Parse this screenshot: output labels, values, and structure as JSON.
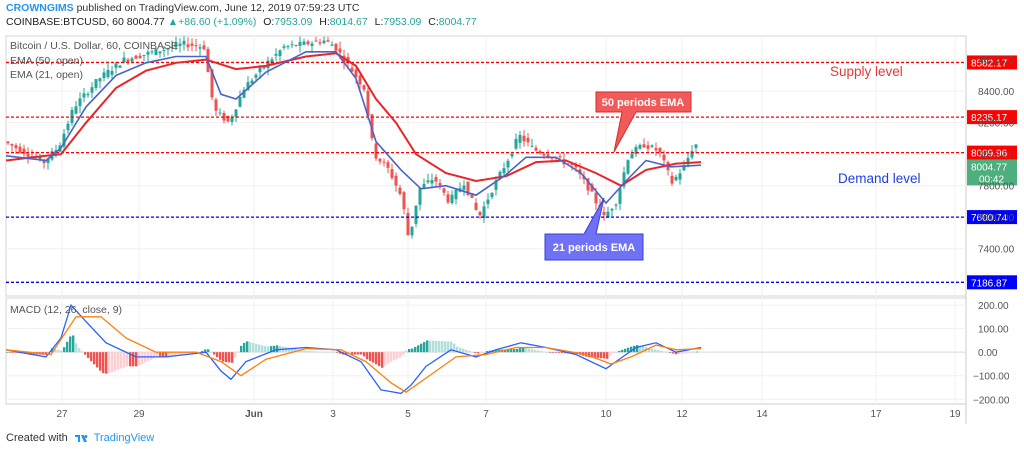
{
  "header": {
    "author": "CROWNGIMS",
    "published": "published on TradingView.com, June 12, 2019 07:59:23 UTC",
    "symbol": "COINBASE:BTCUSD, 60",
    "last": "8004.77",
    "change": "+86.60 (+1.09%)",
    "o_label": "O:",
    "o": "7953.09",
    "h_label": "H:",
    "h": "8014.67",
    "l_label": "L:",
    "l": "7953.09",
    "c_label": "C:",
    "c": "8004.77"
  },
  "legend": {
    "title": "Bitcoin / U.S. Dollar, 60, COINBASE",
    "ema50": "EMA (50, open)",
    "ema21": "EMA (21, open)",
    "macd": "MACD (12, 26, close, 9)"
  },
  "annotations": {
    "supply": "Supply level",
    "demand": "Demand level",
    "ema50_callout": "50 periods EMA",
    "ema21_callout": "21 periods EMA"
  },
  "footer": {
    "created": "Created with",
    "brand": "TradingView"
  },
  "colors": {
    "ema50": "#e8262a",
    "ema21": "#4a63c8",
    "up": "#26a69a",
    "down": "#ef5350",
    "resistance": "#ff0000",
    "support": "#0000ff",
    "macd": "#2962ff",
    "signal": "#ff7f0e"
  },
  "chart_data": [
    {
      "type": "candlestick",
      "title": "Bitcoin / U.S. Dollar, 60, COINBASE",
      "ylim": [
        7100,
        8750
      ],
      "y_ticks": [
        7400,
        7600,
        7800,
        8000,
        8200,
        8400,
        8600
      ],
      "x_ticks": [
        "27",
        "29",
        "Jun",
        "3",
        "5",
        "7",
        "10",
        "12",
        "14",
        "17",
        "19"
      ],
      "horizontal_levels": [
        {
          "value": 8582.17,
          "label": "8582.17",
          "color": "#ff0000"
        },
        {
          "value": 8235.17,
          "label": "8235.17",
          "color": "#ff0000"
        },
        {
          "value": 8009.96,
          "label": "8009.96",
          "color": "#ff0000"
        },
        {
          "value": 7600.74,
          "label": "7600.74",
          "color": "#0000ff"
        },
        {
          "value": 7186.87,
          "label": "7186.87",
          "color": "#0000ff"
        }
      ],
      "last_price": {
        "value": 8004.77,
        "label": "8004.77",
        "countdown": "00:42"
      },
      "price_path": [
        [
          0,
          8080
        ],
        [
          40,
          7950
        ],
        [
          55,
          8050
        ],
        [
          70,
          8300
        ],
        [
          95,
          8480
        ],
        [
          120,
          8600
        ],
        [
          150,
          8650
        ],
        [
          180,
          8700
        ],
        [
          200,
          8680
        ],
        [
          210,
          8280
        ],
        [
          225,
          8200
        ],
        [
          240,
          8420
        ],
        [
          260,
          8560
        ],
        [
          280,
          8680
        ],
        [
          300,
          8700
        ],
        [
          320,
          8720
        ],
        [
          330,
          8690
        ],
        [
          345,
          8560
        ],
        [
          360,
          8420
        ],
        [
          370,
          8000
        ],
        [
          385,
          7900
        ],
        [
          398,
          7720
        ],
        [
          405,
          7450
        ],
        [
          415,
          7780
        ],
        [
          430,
          7850
        ],
        [
          445,
          7700
        ],
        [
          460,
          7820
        ],
        [
          475,
          7600
        ],
        [
          490,
          7800
        ],
        [
          505,
          7980
        ],
        [
          515,
          8120
        ],
        [
          530,
          8030
        ],
        [
          550,
          7980
        ],
        [
          570,
          7920
        ],
        [
          585,
          7780
        ],
        [
          600,
          7600
        ],
        [
          612,
          7700
        ],
        [
          625,
          8000
        ],
        [
          640,
          8060
        ],
        [
          655,
          8020
        ],
        [
          668,
          7820
        ],
        [
          680,
          7920
        ],
        [
          690,
          8060
        ]
      ],
      "series": [
        {
          "name": "EMA (50, open)",
          "points": [
            [
              0,
              7960
            ],
            [
              40,
              7990
            ],
            [
              55,
              8000
            ],
            [
              80,
              8200
            ],
            [
              110,
              8420
            ],
            [
              140,
              8530
            ],
            [
              170,
              8580
            ],
            [
              200,
              8600
            ],
            [
              230,
              8540
            ],
            [
              260,
              8560
            ],
            [
              300,
              8620
            ],
            [
              330,
              8640
            ],
            [
              350,
              8560
            ],
            [
              370,
              8350
            ],
            [
              390,
              8200
            ],
            [
              410,
              8000
            ],
            [
              440,
              7880
            ],
            [
              470,
              7830
            ],
            [
              500,
              7860
            ],
            [
              530,
              7950
            ],
            [
              560,
              7960
            ],
            [
              590,
              7880
            ],
            [
              615,
              7800
            ],
            [
              640,
              7900
            ],
            [
              670,
              7940
            ],
            [
              695,
              7950
            ]
          ]
        },
        {
          "name": "EMA (21, open)",
          "points": [
            [
              0,
              7990
            ],
            [
              40,
              7960
            ],
            [
              55,
              8040
            ],
            [
              80,
              8300
            ],
            [
              110,
              8500
            ],
            [
              140,
              8580
            ],
            [
              170,
              8620
            ],
            [
              200,
              8620
            ],
            [
              215,
              8380
            ],
            [
              230,
              8350
            ],
            [
              260,
              8520
            ],
            [
              300,
              8650
            ],
            [
              330,
              8650
            ],
            [
              350,
              8480
            ],
            [
              370,
              8080
            ],
            [
              395,
              7900
            ],
            [
              415,
              7780
            ],
            [
              440,
              7800
            ],
            [
              470,
              7740
            ],
            [
              500,
              7870
            ],
            [
              520,
              7980
            ],
            [
              550,
              7980
            ],
            [
              575,
              7880
            ],
            [
              600,
              7690
            ],
            [
              620,
              7830
            ],
            [
              640,
              7960
            ],
            [
              665,
              7920
            ],
            [
              695,
              7930
            ]
          ]
        }
      ]
    },
    {
      "type": "macd",
      "title": "MACD (12, 26, close, 9)",
      "ylim": [
        -220,
        230
      ],
      "y_ticks": [
        -200,
        -100,
        0,
        100,
        200
      ],
      "series": [
        {
          "name": "MACD",
          "points": [
            [
              0,
              10
            ],
            [
              40,
              -20
            ],
            [
              55,
              60
            ],
            [
              65,
              200
            ],
            [
              80,
              130
            ],
            [
              100,
              40
            ],
            [
              130,
              -20
            ],
            [
              160,
              -20
            ],
            [
              200,
              0
            ],
            [
              215,
              -80
            ],
            [
              225,
              -115
            ],
            [
              240,
              -40
            ],
            [
              270,
              10
            ],
            [
              300,
              20
            ],
            [
              330,
              10
            ],
            [
              355,
              -40
            ],
            [
              375,
              -160
            ],
            [
              395,
              -175
            ],
            [
              405,
              -140
            ],
            [
              420,
              -60
            ],
            [
              445,
              10
            ],
            [
              470,
              -20
            ],
            [
              490,
              10
            ],
            [
              515,
              40
            ],
            [
              540,
              20
            ],
            [
              570,
              -10
            ],
            [
              600,
              -70
            ],
            [
              610,
              -40
            ],
            [
              630,
              20
            ],
            [
              650,
              40
            ],
            [
              670,
              0
            ],
            [
              695,
              20
            ]
          ]
        },
        {
          "name": "Signal",
          "points": [
            [
              0,
              10
            ],
            [
              45,
              -10
            ],
            [
              70,
              150
            ],
            [
              95,
              150
            ],
            [
              120,
              60
            ],
            [
              150,
              0
            ],
            [
              190,
              0
            ],
            [
              215,
              -40
            ],
            [
              235,
              -100
            ],
            [
              260,
              -30
            ],
            [
              300,
              15
            ],
            [
              335,
              10
            ],
            [
              360,
              -40
            ],
            [
              385,
              -130
            ],
            [
              400,
              -170
            ],
            [
              420,
              -110
            ],
            [
              450,
              -20
            ],
            [
              480,
              -10
            ],
            [
              510,
              20
            ],
            [
              540,
              20
            ],
            [
              580,
              -10
            ],
            [
              605,
              -50
            ],
            [
              625,
              -20
            ],
            [
              650,
              30
            ],
            [
              670,
              10
            ],
            [
              695,
              15
            ]
          ]
        }
      ]
    }
  ]
}
